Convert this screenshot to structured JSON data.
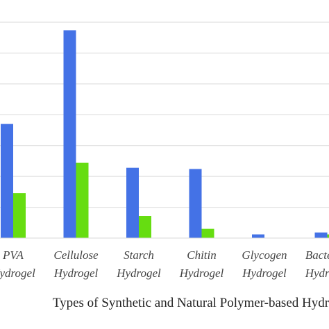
{
  "chart_data": {
    "type": "bar",
    "xlabel": "Types of Synthetic and Natural Polymer-based Hydrogels",
    "categories": [
      [
        "PVA",
        "Hydrogel"
      ],
      [
        "Cellulose",
        "Hydrogel"
      ],
      [
        "Starch",
        "Hydrogel"
      ],
      [
        "Chitin",
        "Hydrogel"
      ],
      [
        "Glycogen",
        "Hydrogel"
      ],
      [
        "Bacterial",
        "Hydrogel"
      ]
    ],
    "series": [
      {
        "color": "#4472e6",
        "values": [
          185,
          337,
          114,
          112,
          6,
          9
        ]
      },
      {
        "color": "#66dd11",
        "values": [
          73,
          122,
          36,
          15,
          0,
          6
        ]
      }
    ],
    "ylim": [
      0,
      350
    ],
    "grid": true,
    "gridline_count": 7,
    "legend": "none"
  }
}
